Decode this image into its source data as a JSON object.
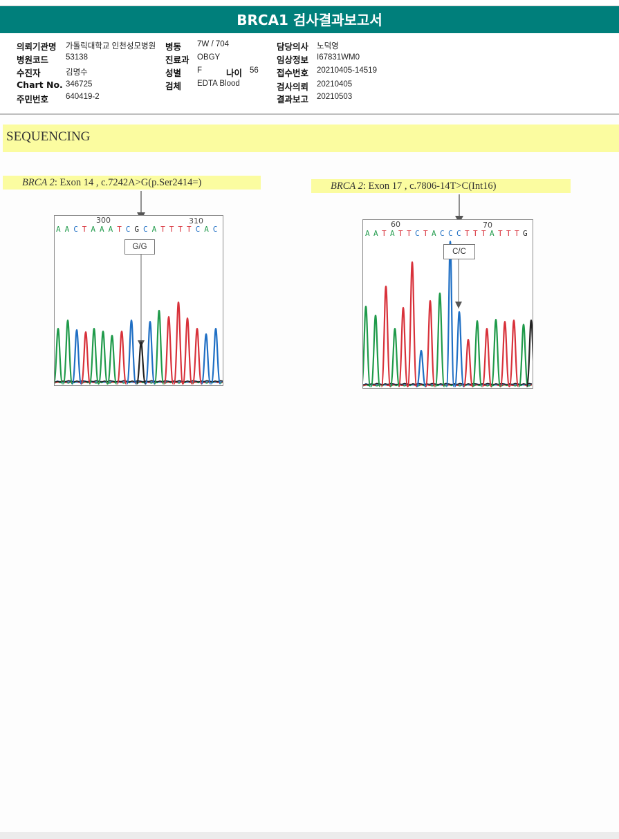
{
  "title": "BRCA1 검사결과보고서",
  "info": {
    "hospital_label": "의뢰기관명",
    "hospital": "가톨릭대학교 인천성모병원",
    "ward_label": "병동",
    "ward": "7W / 704",
    "doctor_label": "담당의사",
    "doctor": "노덕영",
    "hospcode_label": "병원코드",
    "hospcode": "53138",
    "dept_label": "진료과",
    "dept": "OBGY",
    "clinical_label": "임상정보",
    "clinical": "I67831WM0",
    "patient_label": "수진자",
    "patient": "김명수",
    "sex_label": "성별",
    "sex": "F",
    "age_label": "나이",
    "age": "56",
    "receipt_label": "접수번호",
    "receipt": "20210405-14519",
    "chart_label": "Chart No.",
    "chart": "346725",
    "specimen_label": "검체",
    "specimen": "EDTA Blood",
    "request_label": "검사의뢰",
    "request": "20210405",
    "id_label": "주민번호",
    "id": "640419-2",
    "report_label": "결과보고",
    "report": "20210503"
  },
  "section_title": "SEQUENCING",
  "variants": [
    {
      "gene": "BRCA 2",
      "detail": ": Exon 14 , c.7242A>G(p.Ser2414=)",
      "genotype": "G/G",
      "tick_left": "300",
      "tick_right": "310",
      "bases": [
        {
          "b": "A",
          "c": "#1f9a4a"
        },
        {
          "b": "A",
          "c": "#1f9a4a"
        },
        {
          "b": "C",
          "c": "#1f6fc4"
        },
        {
          "b": "T",
          "c": "#d8313a"
        },
        {
          "b": "A",
          "c": "#1f9a4a"
        },
        {
          "b": "A",
          "c": "#1f9a4a"
        },
        {
          "b": "A",
          "c": "#1f9a4a"
        },
        {
          "b": "T",
          "c": "#d8313a"
        },
        {
          "b": "C",
          "c": "#1f6fc4"
        },
        {
          "b": "G",
          "c": "#222222"
        },
        {
          "b": "C",
          "c": "#1f6fc4"
        },
        {
          "b": "A",
          "c": "#1f9a4a"
        },
        {
          "b": "T",
          "c": "#d8313a"
        },
        {
          "b": "T",
          "c": "#d8313a"
        },
        {
          "b": "T",
          "c": "#d8313a"
        },
        {
          "b": "T",
          "c": "#d8313a"
        },
        {
          "b": "C",
          "c": "#1f6fc4"
        },
        {
          "b": "A",
          "c": "#1f9a4a"
        },
        {
          "b": "C",
          "c": "#1f6fc4"
        }
      ]
    },
    {
      "gene": "BRCA 2",
      "detail": ": Exon 17 , c.7806-14T>C(Int16)",
      "genotype": "C/C",
      "tick_left": "60",
      "tick_right": "70",
      "bases": [
        {
          "b": "A",
          "c": "#1f9a4a"
        },
        {
          "b": "A",
          "c": "#1f9a4a"
        },
        {
          "b": "T",
          "c": "#d8313a"
        },
        {
          "b": "A",
          "c": "#1f9a4a"
        },
        {
          "b": "T",
          "c": "#d8313a"
        },
        {
          "b": "T",
          "c": "#d8313a"
        },
        {
          "b": "C",
          "c": "#1f6fc4"
        },
        {
          "b": "T",
          "c": "#d8313a"
        },
        {
          "b": "A",
          "c": "#1f9a4a"
        },
        {
          "b": "C",
          "c": "#1f6fc4"
        },
        {
          "b": "C",
          "c": "#1f6fc4"
        },
        {
          "b": "C",
          "c": "#1f6fc4"
        },
        {
          "b": "T",
          "c": "#d8313a"
        },
        {
          "b": "T",
          "c": "#d8313a"
        },
        {
          "b": "T",
          "c": "#d8313a"
        },
        {
          "b": "A",
          "c": "#1f9a4a"
        },
        {
          "b": "T",
          "c": "#d8313a"
        },
        {
          "b": "T",
          "c": "#d8313a"
        },
        {
          "b": "T",
          "c": "#d8313a"
        },
        {
          "b": "G",
          "c": "#222222"
        }
      ]
    }
  ]
}
